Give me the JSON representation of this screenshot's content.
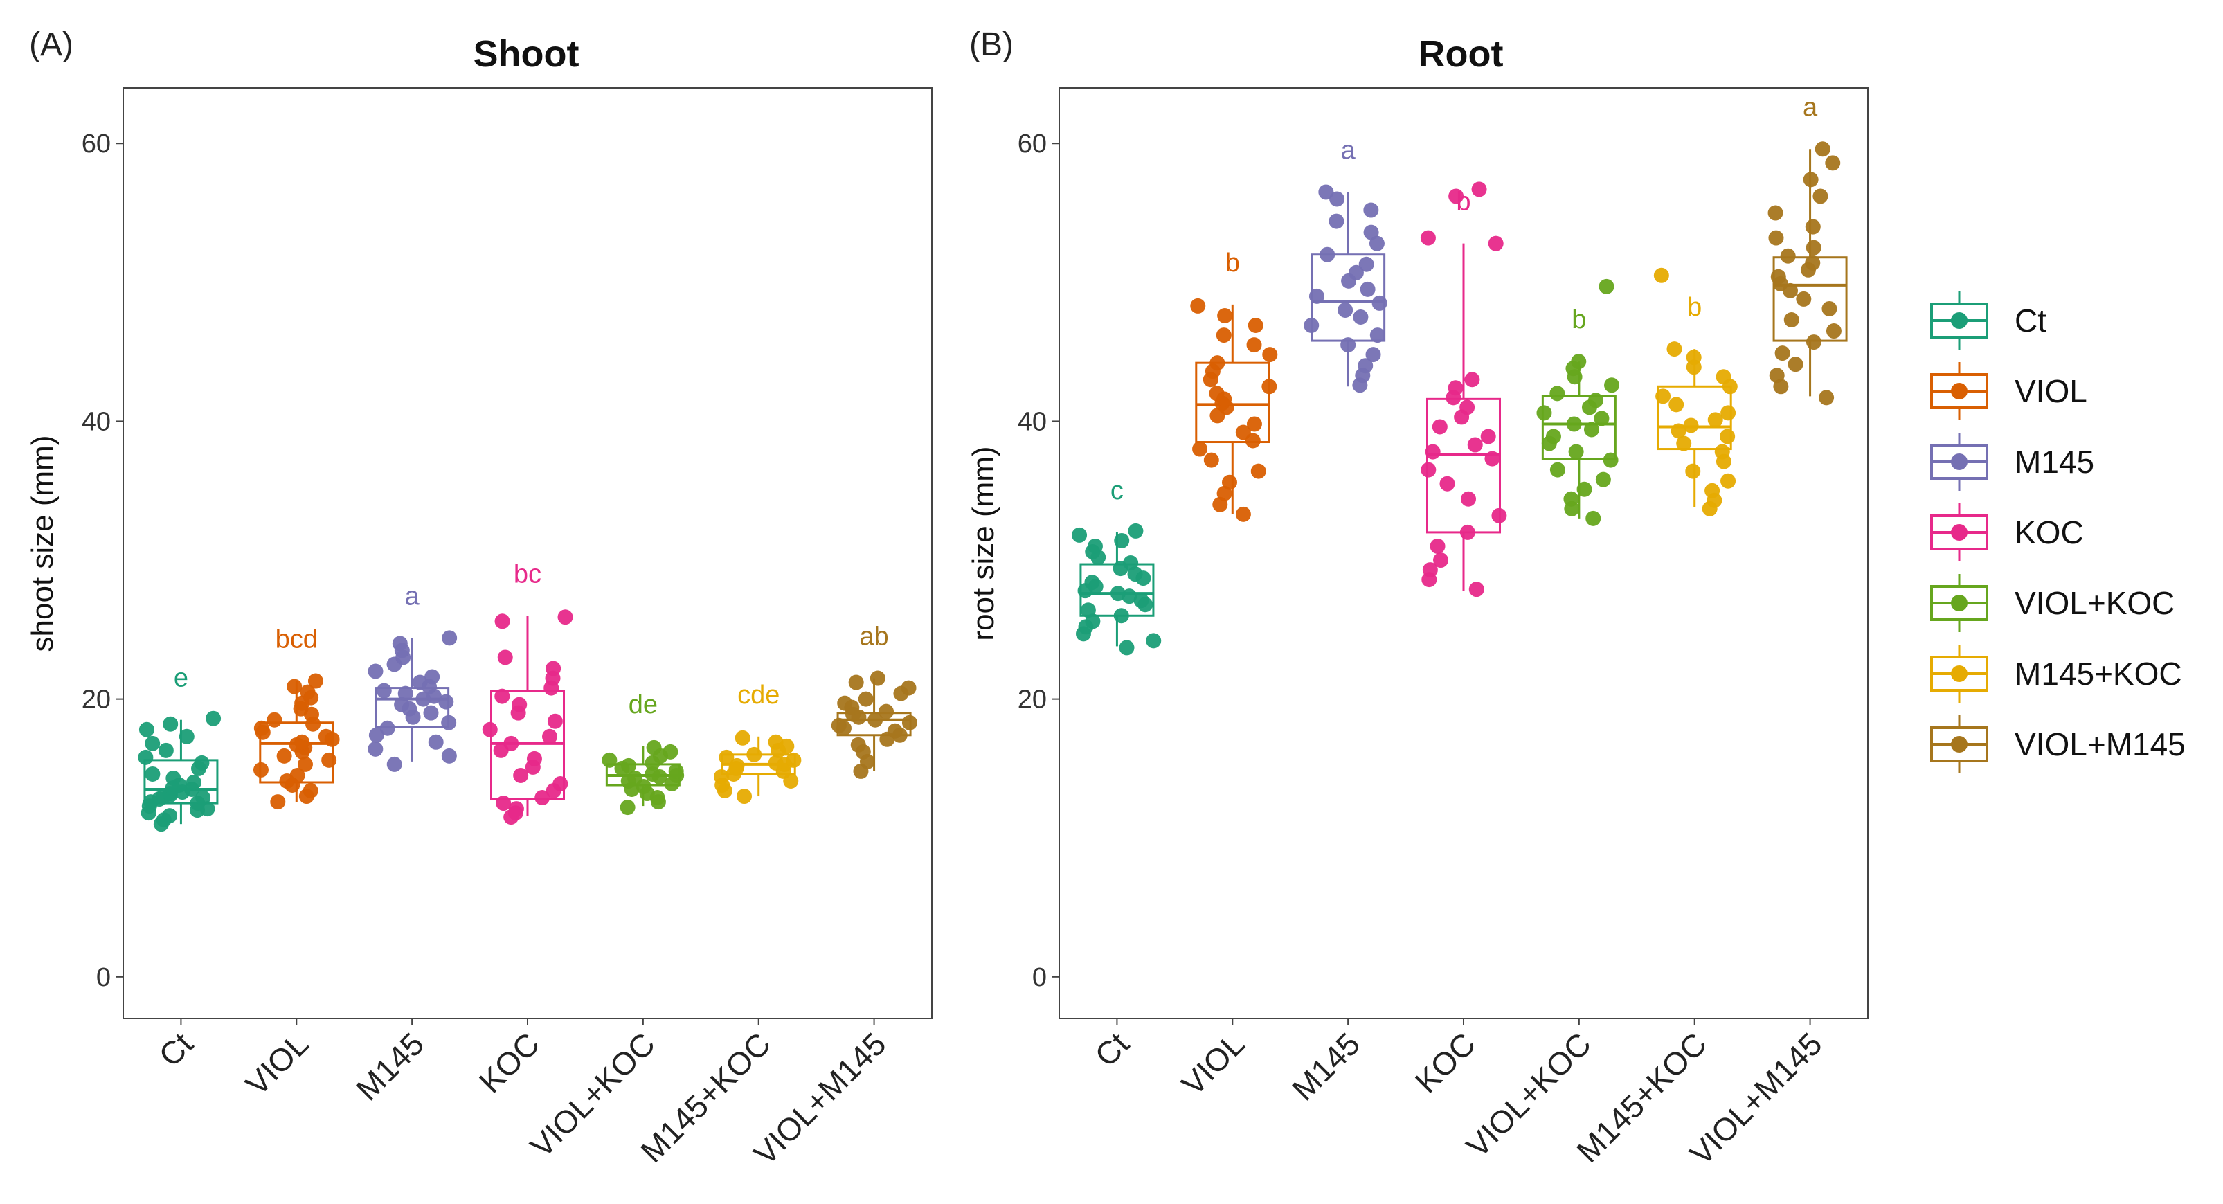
{
  "chart_data": [
    {
      "type": "box",
      "panel_label": "(A)",
      "title": "Shoot",
      "ylabel": "shoot size (mm)",
      "xlabel": "",
      "ylim": [
        -3,
        64
      ],
      "yticks": [
        0,
        20,
        40,
        60
      ],
      "categories": [
        "Ct",
        "VIOL",
        "M145",
        "KOC",
        "VIOL+KOC",
        "M145+KOC",
        "VIOL+M145"
      ],
      "colors": [
        "#1b9e77",
        "#d95f02",
        "#7570b3",
        "#e7298a",
        "#66a61e",
        "#e6ab02",
        "#a6761d"
      ],
      "boxes": [
        {
          "q1": 12.5,
          "median": 13.5,
          "q3": 15.6,
          "whisker_low": 11.0,
          "whisker_high": 18.5,
          "letter": "e",
          "points": [
            11.0,
            11.3,
            11.6,
            11.8,
            12.0,
            12.1,
            12.3,
            12.5,
            12.6,
            12.8,
            12.9,
            13.0,
            13.1,
            13.2,
            13.3,
            13.5,
            13.6,
            13.8,
            14.0,
            14.3,
            14.6,
            15.0,
            15.4,
            15.8,
            16.3,
            16.8,
            17.3,
            17.8,
            18.2,
            18.6
          ]
        },
        {
          "q1": 14.0,
          "median": 16.8,
          "q3": 18.3,
          "whisker_low": 12.6,
          "whisker_high": 21.3,
          "letter": "bcd",
          "points": [
            12.6,
            13.0,
            13.4,
            13.8,
            14.1,
            14.5,
            14.9,
            15.3,
            15.6,
            15.9,
            16.2,
            16.5,
            16.7,
            16.9,
            17.1,
            17.3,
            17.6,
            17.9,
            18.2,
            18.5,
            18.9,
            19.3,
            19.7,
            20.1,
            20.5,
            20.9,
            21.3
          ]
        },
        {
          "q1": 18.0,
          "median": 20.0,
          "q3": 20.8,
          "whisker_low": 15.5,
          "whisker_high": 24.4,
          "letter": "a",
          "points": [
            15.3,
            15.9,
            16.4,
            16.9,
            17.4,
            17.9,
            18.3,
            18.7,
            19.0,
            19.3,
            19.6,
            19.8,
            20.0,
            20.2,
            20.4,
            20.6,
            20.9,
            21.2,
            21.6,
            22.0,
            22.5,
            23.0,
            23.5,
            24.0,
            24.4
          ]
        },
        {
          "q1": 12.8,
          "median": 16.8,
          "q3": 20.6,
          "whisker_low": 11.6,
          "whisker_high": 26.0,
          "letter": "bc",
          "points": [
            11.5,
            11.8,
            12.1,
            12.5,
            12.9,
            13.4,
            13.9,
            14.5,
            15.1,
            15.7,
            16.3,
            16.8,
            17.3,
            17.8,
            18.4,
            19.0,
            19.6,
            20.2,
            20.8,
            21.5,
            22.2,
            23.0,
            25.6,
            25.9
          ]
        },
        {
          "q1": 13.8,
          "median": 14.5,
          "q3": 15.3,
          "whisker_low": 12.3,
          "whisker_high": 16.6,
          "letter": "de",
          "points": [
            12.2,
            12.6,
            12.9,
            13.2,
            13.5,
            13.7,
            13.9,
            14.1,
            14.3,
            14.4,
            14.5,
            14.6,
            14.8,
            15.0,
            15.2,
            15.4,
            15.6,
            15.9,
            16.2,
            16.5
          ]
        },
        {
          "q1": 14.6,
          "median": 15.3,
          "q3": 16.0,
          "whisker_low": 13.0,
          "whisker_high": 17.3,
          "letter": "cde",
          "points": [
            13.0,
            13.4,
            13.8,
            14.1,
            14.4,
            14.6,
            14.8,
            15.0,
            15.2,
            15.3,
            15.4,
            15.6,
            15.8,
            16.0,
            16.3,
            16.6,
            16.9,
            17.2
          ]
        },
        {
          "q1": 17.4,
          "median": 18.5,
          "q3": 19.0,
          "whisker_low": 14.8,
          "whisker_high": 21.5,
          "letter": "ab",
          "points": [
            14.8,
            15.5,
            16.2,
            16.7,
            17.1,
            17.4,
            17.7,
            17.9,
            18.1,
            18.3,
            18.5,
            18.7,
            18.9,
            19.1,
            19.4,
            19.7,
            20.0,
            20.4,
            20.8,
            21.2,
            21.5
          ]
        }
      ]
    },
    {
      "type": "box",
      "panel_label": "(B)",
      "title": "Root",
      "ylabel": "root size (mm)",
      "xlabel": "",
      "ylim": [
        -3,
        64
      ],
      "yticks": [
        0,
        20,
        40,
        60
      ],
      "categories": [
        "Ct",
        "VIOL",
        "M145",
        "KOC",
        "VIOL+KOC",
        "M145+KOC",
        "VIOL+M145"
      ],
      "colors": [
        "#1b9e77",
        "#d95f02",
        "#7570b3",
        "#e7298a",
        "#66a61e",
        "#e6ab02",
        "#a6761d"
      ],
      "boxes": [
        {
          "q1": 26.0,
          "median": 27.6,
          "q3": 29.7,
          "whisker_low": 23.8,
          "whisker_high": 32.0,
          "letter": "c",
          "points": [
            23.7,
            24.2,
            24.7,
            25.2,
            25.6,
            26.0,
            26.4,
            26.8,
            27.1,
            27.4,
            27.6,
            27.8,
            28.1,
            28.4,
            28.7,
            29.0,
            29.4,
            29.8,
            30.2,
            30.6,
            31.0,
            31.4,
            31.8,
            32.1
          ]
        },
        {
          "q1": 38.5,
          "median": 41.2,
          "q3": 44.2,
          "whisker_low": 33.3,
          "whisker_high": 48.4,
          "letter": "b",
          "points": [
            33.3,
            34.0,
            34.8,
            35.6,
            36.4,
            37.2,
            38.0,
            38.6,
            39.2,
            39.8,
            40.4,
            41.0,
            41.3,
            41.6,
            42.0,
            42.5,
            43.0,
            43.6,
            44.2,
            44.8,
            45.5,
            46.2,
            46.9,
            47.6,
            48.3
          ]
        },
        {
          "q1": 45.8,
          "median": 48.6,
          "q3": 52.0,
          "whisker_low": 42.5,
          "whisker_high": 56.5,
          "letter": "a",
          "points": [
            42.6,
            43.3,
            44.0,
            44.8,
            45.5,
            46.2,
            46.9,
            47.5,
            48.0,
            48.5,
            49.0,
            49.5,
            50.1,
            50.7,
            51.3,
            52.0,
            52.8,
            53.6,
            54.4,
            55.2,
            56.0,
            56.5
          ]
        },
        {
          "q1": 32.0,
          "median": 37.6,
          "q3": 41.6,
          "whisker_low": 27.8,
          "whisker_high": 52.8,
          "letter": "b",
          "points": [
            27.9,
            28.6,
            29.3,
            30.0,
            31.0,
            32.0,
            33.2,
            34.4,
            35.5,
            36.5,
            37.3,
            37.8,
            38.3,
            38.9,
            39.6,
            40.3,
            41.0,
            41.7,
            42.4,
            43.0,
            52.8,
            53.2,
            56.2,
            56.7
          ]
        },
        {
          "q1": 37.3,
          "median": 39.8,
          "q3": 41.8,
          "whisker_low": 33.0,
          "whisker_high": 44.3,
          "letter": "b",
          "points": [
            33.0,
            33.7,
            34.4,
            35.1,
            35.8,
            36.5,
            37.2,
            37.8,
            38.4,
            38.9,
            39.4,
            39.8,
            40.2,
            40.6,
            41.0,
            41.5,
            42.0,
            42.6,
            43.2,
            43.8,
            44.3,
            49.7
          ]
        },
        {
          "q1": 38.0,
          "median": 39.6,
          "q3": 42.5,
          "whisker_low": 33.8,
          "whisker_high": 45.2,
          "letter": "b",
          "points": [
            33.7,
            34.3,
            35.0,
            35.7,
            36.4,
            37.1,
            37.8,
            38.4,
            38.9,
            39.3,
            39.7,
            40.1,
            40.6,
            41.2,
            41.8,
            42.5,
            43.2,
            43.9,
            44.6,
            45.2,
            50.5
          ]
        },
        {
          "q1": 45.8,
          "median": 49.8,
          "q3": 51.8,
          "whisker_low": 41.8,
          "whisker_high": 59.6,
          "letter": "a",
          "points": [
            41.7,
            42.5,
            43.3,
            44.1,
            44.9,
            45.7,
            46.5,
            47.3,
            48.1,
            48.8,
            49.4,
            49.9,
            50.4,
            50.9,
            51.4,
            51.9,
            52.5,
            53.2,
            54.0,
            55.0,
            56.2,
            57.4,
            58.6,
            59.6
          ]
        }
      ]
    }
  ],
  "legend": {
    "items": [
      "Ct",
      "VIOL",
      "M145",
      "KOC",
      "VIOL+KOC",
      "M145+KOC",
      "VIOL+M145"
    ],
    "colors": [
      "#1b9e77",
      "#d95f02",
      "#7570b3",
      "#e7298a",
      "#66a61e",
      "#e6ab02",
      "#a6761d"
    ]
  }
}
